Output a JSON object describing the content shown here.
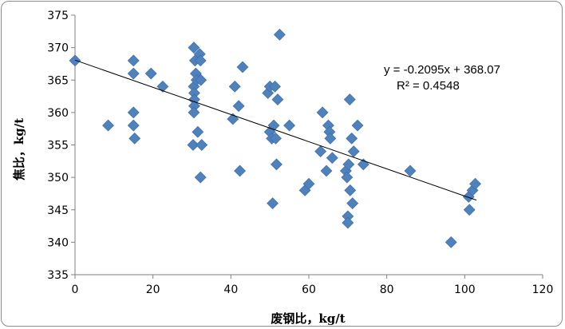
{
  "chart_data": {
    "type": "scatter",
    "title": "",
    "xlabel": "废钢比，kg/t",
    "ylabel": "焦比，kg/t",
    "xlim": [
      0,
      120
    ],
    "ylim": [
      335,
      375
    ],
    "xticks": [
      0,
      20,
      40,
      60,
      80,
      100,
      120
    ],
    "yticks": [
      335,
      340,
      345,
      350,
      355,
      360,
      365,
      370,
      375
    ],
    "grid": false,
    "legend": "none",
    "marker": "diamond",
    "marker_color": "#4F81BD",
    "trendline": {
      "type": "linear",
      "slope": -0.2095,
      "intercept": 368.07,
      "equation_label": "y = -0.2095x + 368.07",
      "r2_label": "R² = 0.4548"
    },
    "series": [
      {
        "points": [
          [
            0,
            368
          ],
          [
            8.5,
            358
          ],
          [
            15,
            368
          ],
          [
            15,
            366
          ],
          [
            15,
            360
          ],
          [
            15,
            358
          ],
          [
            15.3,
            356
          ],
          [
            19.5,
            366
          ],
          [
            22.5,
            364
          ],
          [
            30.5,
            370
          ],
          [
            30.8,
            368
          ],
          [
            30.5,
            364
          ],
          [
            30.6,
            363
          ],
          [
            30.6,
            362
          ],
          [
            30.6,
            361
          ],
          [
            30.5,
            360
          ],
          [
            30.3,
            355
          ],
          [
            31,
            366
          ],
          [
            31.2,
            365
          ],
          [
            31.5,
            357
          ],
          [
            32,
            369
          ],
          [
            32.2,
            368
          ],
          [
            32.3,
            365
          ],
          [
            32.5,
            355
          ],
          [
            32.2,
            350
          ],
          [
            40.5,
            359
          ],
          [
            41,
            364
          ],
          [
            42,
            361
          ],
          [
            42.3,
            351
          ],
          [
            43,
            367
          ],
          [
            49.5,
            363
          ],
          [
            50,
            364
          ],
          [
            50,
            357
          ],
          [
            50.5,
            356
          ],
          [
            50.7,
            346
          ],
          [
            51,
            358
          ],
          [
            51.3,
            364
          ],
          [
            51.5,
            356
          ],
          [
            51.7,
            352
          ],
          [
            52,
            362
          ],
          [
            52.5,
            372
          ],
          [
            55,
            358
          ],
          [
            59,
            348
          ],
          [
            60,
            349
          ],
          [
            63,
            354
          ],
          [
            63.5,
            360
          ],
          [
            64.5,
            351
          ],
          [
            65,
            358
          ],
          [
            65.3,
            357
          ],
          [
            65.5,
            356
          ],
          [
            66,
            353
          ],
          [
            69.5,
            351
          ],
          [
            69.8,
            350
          ],
          [
            70,
            344
          ],
          [
            70,
            343
          ],
          [
            70.2,
            352
          ],
          [
            70.5,
            362
          ],
          [
            70.6,
            348
          ],
          [
            71,
            356
          ],
          [
            71.2,
            346
          ],
          [
            71.5,
            354
          ],
          [
            72.5,
            358
          ],
          [
            74,
            352
          ],
          [
            86,
            351
          ],
          [
            96.5,
            340
          ],
          [
            101,
            347
          ],
          [
            101.2,
            345
          ],
          [
            102,
            348
          ],
          [
            102.7,
            349
          ]
        ]
      }
    ]
  }
}
